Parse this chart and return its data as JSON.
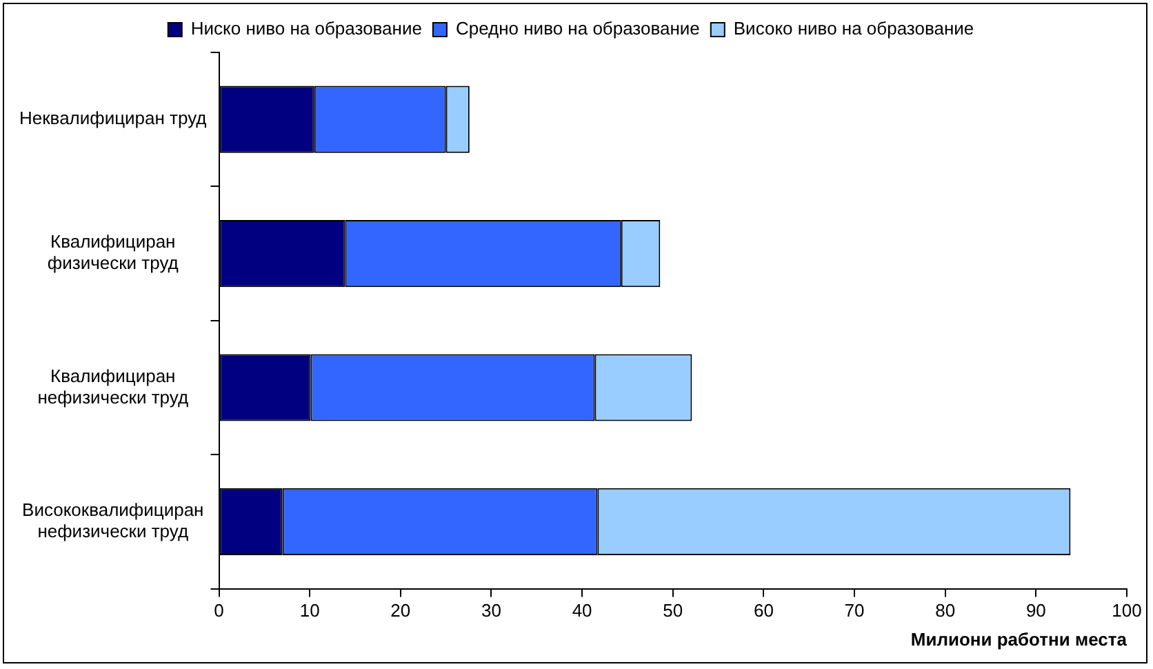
{
  "chart_data": {
    "type": "bar",
    "orientation": "horizontal",
    "stacked": true,
    "xlabel": "Милиони работни места",
    "categories": [
      "Неквалифициран труд",
      "Квалифициран физически труд",
      "Квалифициран нефизически труд",
      "Висококвалифициран нефизически труд"
    ],
    "series": [
      {
        "name": "Ниско ниво на образование",
        "color": "#000080",
        "values": [
          10.5,
          13.9,
          10.1,
          7.0
        ]
      },
      {
        "name": "Средно ниво на образование",
        "color": "#3366ff",
        "values": [
          14.5,
          30.4,
          31.3,
          34.7
        ]
      },
      {
        "name": "Високо ниво на образование",
        "color": "#99ccff",
        "values": [
          2.6,
          4.3,
          10.7,
          52.1
        ]
      }
    ],
    "xlim": [
      0,
      100
    ],
    "xticks": [
      0,
      10,
      20,
      30,
      40,
      50,
      60,
      70,
      80,
      90,
      100
    ],
    "grid": false,
    "legend": "top"
  }
}
